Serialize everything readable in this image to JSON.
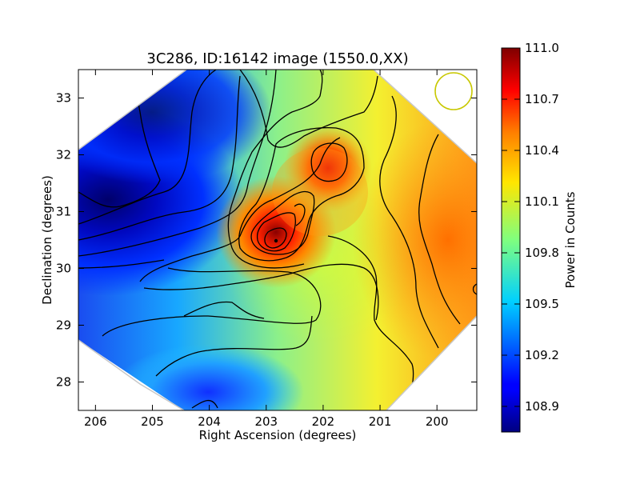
{
  "chart_data": {
    "type": "heatmap",
    "title": "3C286, ID:16142 image (1550.0,XX)",
    "xlabel": "Right Ascension (degrees)",
    "ylabel": "Declination (degrees)",
    "xlim": [
      206.3,
      199.3
    ],
    "ylim": [
      27.5,
      33.5
    ],
    "x_ticks": [
      "206",
      "205",
      "204",
      "203",
      "202",
      "201",
      "200"
    ],
    "y_ticks": [
      "28",
      "29",
      "30",
      "31",
      "32",
      "33"
    ],
    "colorbar": {
      "label": "Power in Counts",
      "range": [
        108.75,
        111.0
      ],
      "ticks": [
        "108.9",
        "109.2",
        "109.5",
        "109.8",
        "110.1",
        "110.4",
        "110.7",
        "111.0"
      ],
      "colormap": "jet"
    },
    "features": [
      {
        "kind": "peak",
        "ra": 202.8,
        "dec": 30.5,
        "value": 111.0
      },
      {
        "kind": "peak",
        "ra": 201.8,
        "dec": 31.8,
        "value": 110.8
      },
      {
        "kind": "peak",
        "ra": 199.5,
        "dec": 30.0,
        "value": 110.5
      },
      {
        "kind": "trough",
        "ra": 206.2,
        "dec": 31.2,
        "value": 108.8
      },
      {
        "kind": "trough",
        "ra": 205.5,
        "dec": 32.5,
        "value": 109.0
      },
      {
        "kind": "trough",
        "ra": 203.8,
        "dec": 27.8,
        "value": 109.3
      }
    ],
    "beam_marker": {
      "ra": 199.7,
      "dec": 33.1,
      "color": "#c8c800"
    }
  }
}
